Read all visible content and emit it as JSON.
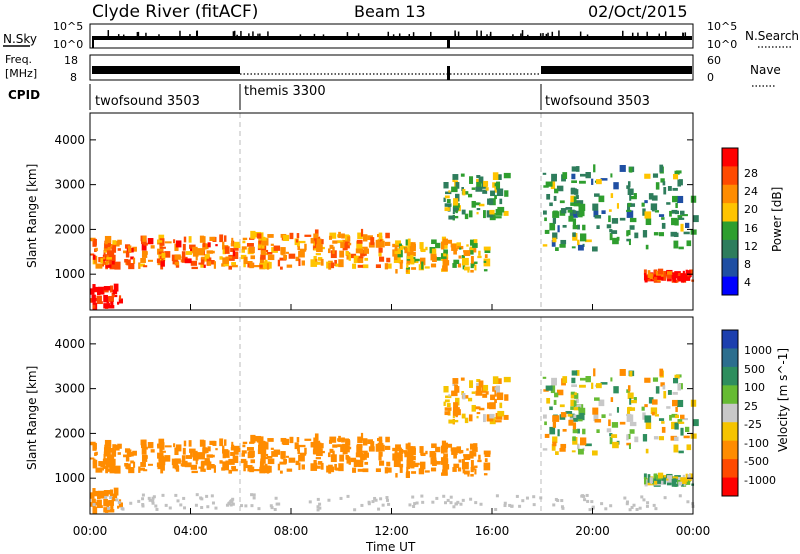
{
  "header": {
    "station": "Clyde River (fitACF)",
    "beam": "Beam 13",
    "date": "02/Oct/2015"
  },
  "nsky_panel": {
    "left_label": "N.Sky",
    "right_label": "N.Search",
    "left_ticks": [
      "10^5",
      "10^0"
    ],
    "right_ticks": [
      "10^5",
      "10^0"
    ]
  },
  "freq_panel": {
    "left_label_1": "Freq.",
    "left_label_2": "[MHz]",
    "right_label": "Nave",
    "left_ticks": [
      "18",
      "8"
    ],
    "right_ticks": [
      "60",
      "0"
    ]
  },
  "cpid": {
    "label": "CPID",
    "segments": [
      {
        "name": "twofsound 3503",
        "start_hour": 0
      },
      {
        "name": "themis 3300",
        "start_hour": 6
      },
      {
        "name": "twofsound 3503",
        "start_hour": 18
      }
    ]
  },
  "power_panel": {
    "ylabel": "Slant Range [km]",
    "yticks": [
      "4000",
      "3000",
      "2000",
      "1000"
    ],
    "colorbar_label": "Power [dB]",
    "colorbar_ticks": [
      "28",
      "24",
      "20",
      "16",
      "12",
      "8",
      "4"
    ],
    "colorbar_colors": [
      "#ff0000",
      "#ff4a00",
      "#ff8c00",
      "#ffc400",
      "#2e9e2e",
      "#2e7d5c",
      "#1f4fa3",
      "#0000ff"
    ]
  },
  "velocity_panel": {
    "ylabel": "Slant Range [km]",
    "yticks": [
      "4000",
      "3000",
      "2000",
      "1000"
    ],
    "colorbar_label": "Velocity [m s^-1]",
    "colorbar_ticks": [
      "1000",
      "500",
      "100",
      "25",
      "-25",
      "-100",
      "-500",
      "-1000"
    ],
    "colorbar_colors": [
      "#1c3fae",
      "#2c6e8e",
      "#2e8e5e",
      "#66bb33",
      "#c8c8c8",
      "#f5c400",
      "#ff8c00",
      "#ff4a00",
      "#ff0000"
    ],
    "ground_scatter_color": "#c0c0c0"
  },
  "x_axis": {
    "label": "Time UT",
    "ticks": [
      "00:00",
      "04:00",
      "08:00",
      "12:00",
      "16:00",
      "20:00",
      "00:00"
    ]
  },
  "chart_data": {
    "type": "heatmap",
    "title": "Clyde River (fitACF) Beam 13 02/Oct/2015",
    "xlabel": "Time UT",
    "ylabel": "Slant Range [km]",
    "xlim_hours": [
      0,
      24
    ],
    "ylim_km": [
      200,
      4600
    ],
    "mode_changes_hours": [
      6,
      18
    ],
    "echo_regions": [
      {
        "t0": 0.0,
        "t1": 1.2,
        "r0": 200,
        "r1": 650,
        "power_db": 30,
        "velocity": -300
      },
      {
        "t0": 0.0,
        "t1": 5.8,
        "r0": 1100,
        "r1": 1750,
        "power_db": 24,
        "velocity": -250
      },
      {
        "t0": 6.0,
        "t1": 11.8,
        "r0": 1100,
        "r1": 1850,
        "power_db": 22,
        "velocity": -300
      },
      {
        "t0": 12.0,
        "t1": 15.8,
        "r0": 1000,
        "r1": 1700,
        "power_db": 18,
        "velocity": -250
      },
      {
        "t0": 14.0,
        "t1": 16.5,
        "r0": 2200,
        "r1": 3200,
        "power_db": 14,
        "velocity": -150
      },
      {
        "t0": 18.0,
        "t1": 24.0,
        "r0": 1500,
        "r1": 3300,
        "power_db": 12,
        "velocity": 0
      },
      {
        "t0": 22.0,
        "t1": 24.0,
        "r0": 800,
        "r1": 1000,
        "power_db": 28,
        "velocity": 50
      }
    ]
  }
}
